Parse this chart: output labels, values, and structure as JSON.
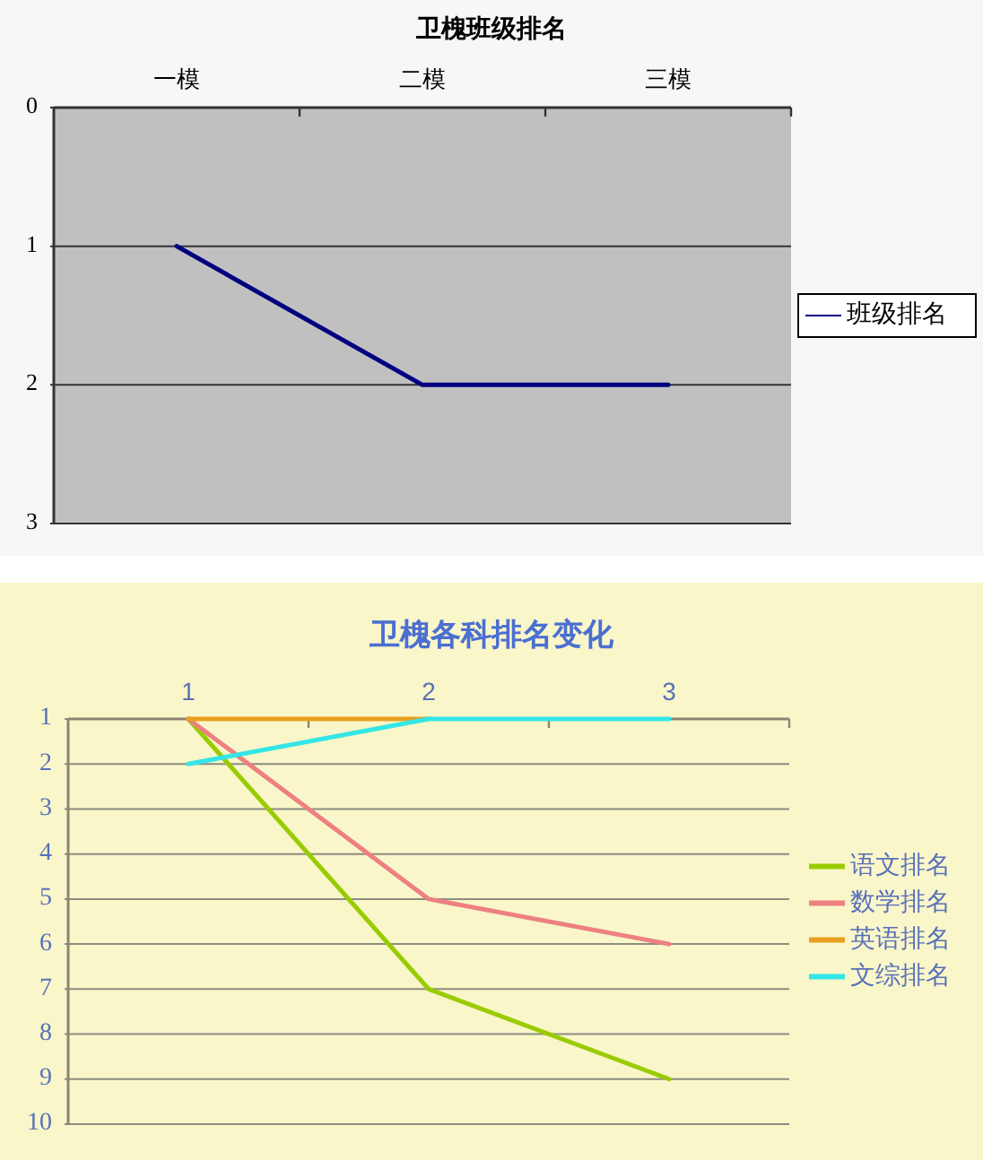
{
  "chart_data": [
    {
      "type": "line",
      "title": "卫槐班级排名",
      "categories": [
        "一模",
        "二模",
        "三模"
      ],
      "series": [
        {
          "name": "班级排名",
          "color": "#000080",
          "values": [
            1,
            2,
            2
          ]
        }
      ],
      "ylim": [
        3,
        0
      ],
      "yticks": [
        0,
        1,
        2,
        3
      ],
      "grid": "y",
      "legend": "right"
    },
    {
      "type": "line",
      "title": "卫槐各科排名变化",
      "categories": [
        "1",
        "2",
        "3"
      ],
      "series": [
        {
          "name": "语文排名",
          "color": "#99cc00",
          "values": [
            1,
            7,
            9
          ]
        },
        {
          "name": "数学排名",
          "color": "#ee8080",
          "values": [
            1,
            5,
            6
          ]
        },
        {
          "name": "英语排名",
          "color": "#e8a020",
          "values": [
            1,
            1,
            null
          ]
        },
        {
          "name": "文综排名",
          "color": "#33e6e6",
          "values": [
            2,
            1,
            1
          ]
        }
      ],
      "ylim": [
        10,
        1
      ],
      "yticks": [
        1,
        2,
        3,
        4,
        5,
        6,
        7,
        8,
        9,
        10
      ],
      "grid": "y",
      "legend": "right"
    }
  ]
}
